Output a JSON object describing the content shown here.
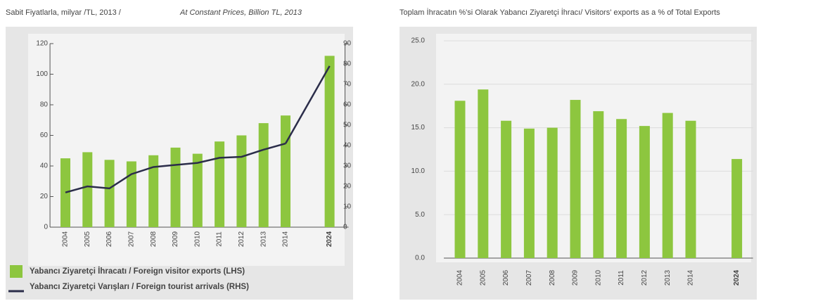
{
  "chart_data": [
    {
      "type": "bar_line",
      "title": "Sabit Fiyatlarla, milyar /TL, 2013 /",
      "subtitle": "At Constant Prices, Billion TL, 2013",
      "categories": [
        "2004",
        "2005",
        "2006",
        "2007",
        "2008",
        "2009",
        "2010",
        "2011",
        "2012",
        "2013",
        "2014",
        null,
        "2024"
      ],
      "series": [
        {
          "name": "Yabancı Ziyaretçi İhracatı / Foreign visitor exports (LHS)",
          "color": "#8dc63f",
          "type": "bar",
          "values": [
            45,
            49,
            44,
            43,
            47,
            52,
            48,
            56,
            60,
            68,
            73,
            null,
            112
          ]
        },
        {
          "name": "Yabancı Ziyaretçi Varışları / Foreign tourist arrivals (RHS)",
          "color": "#2b2d4a",
          "type": "line",
          "axis": "y2",
          "values": [
            17,
            20,
            19,
            26,
            29.5,
            30.5,
            31.5,
            34,
            34.5,
            38,
            41,
            null,
            79
          ]
        }
      ],
      "ylim": [
        0,
        120
      ],
      "yticks": [
        0,
        20,
        40,
        60,
        80,
        100,
        120
      ],
      "y2lim": [
        0,
        90
      ],
      "y2ticks": [
        0,
        10,
        20,
        30,
        40,
        50,
        60,
        70,
        80,
        90
      ],
      "legend": "bottom"
    },
    {
      "type": "bar",
      "title": "Toplam İhracatın %'si Olarak Yabancı Ziyaretçi İhracı/ Visitors' exports as a % of Total Exports",
      "categories": [
        "2004",
        "2005",
        "2006",
        "2007",
        "2008",
        "2009",
        "2010",
        "2011",
        "2012",
        "2013",
        "2014",
        null,
        "2024"
      ],
      "series": [
        {
          "color": "#8dc63f",
          "values": [
            18.1,
            19.4,
            15.8,
            14.9,
            15.0,
            18.2,
            16.9,
            16.0,
            15.2,
            16.7,
            15.8,
            null,
            11.4
          ]
        }
      ],
      "ylim": [
        0,
        25
      ],
      "yticks": [
        {
          "value": 0,
          "label": "0.0"
        },
        {
          "value": 5,
          "label": "5.0"
        },
        {
          "value": 10,
          "label": "10.0"
        },
        {
          "value": 15,
          "label": "15.0"
        },
        {
          "value": 20,
          "label": "20.0"
        },
        {
          "value": 25,
          "label": "25.0"
        }
      ],
      "grid": true
    }
  ]
}
